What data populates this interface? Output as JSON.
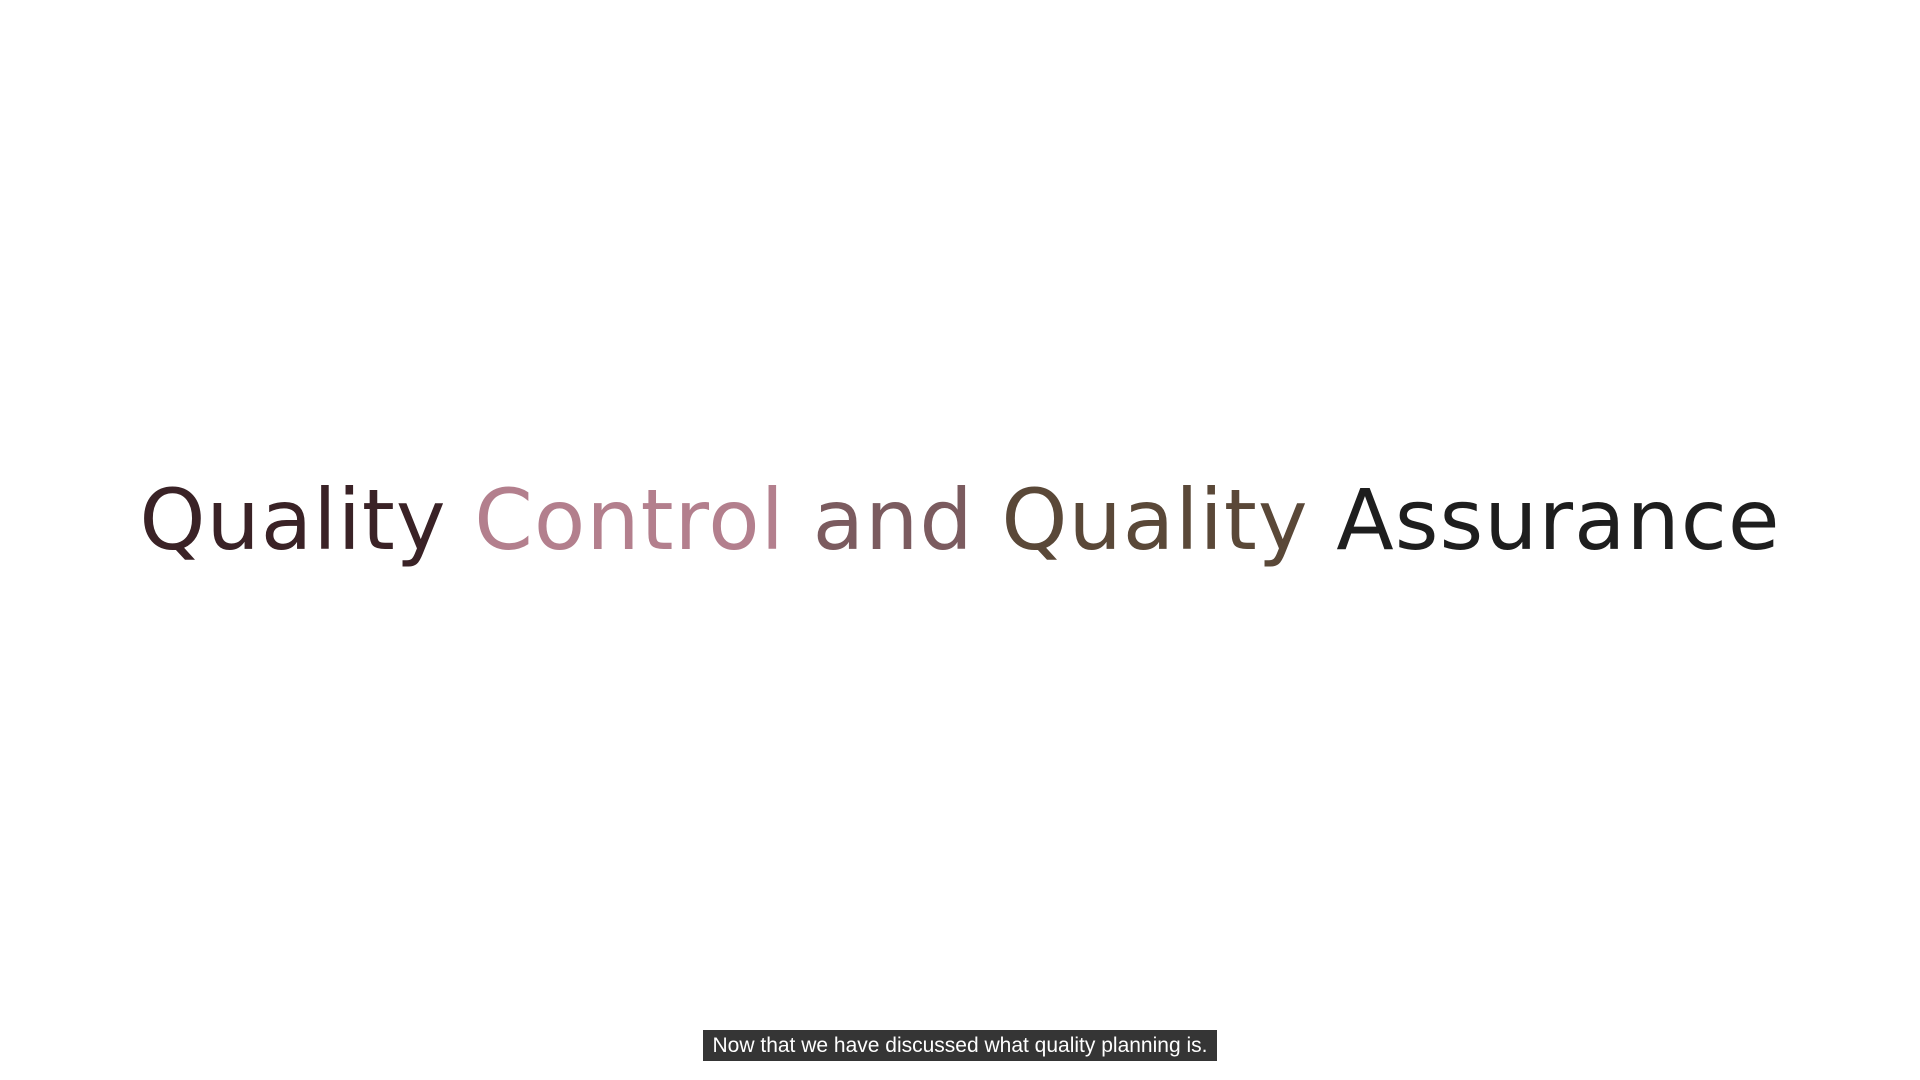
{
  "slide": {
    "title_parts": [
      "Quality",
      "Control",
      "and",
      "Quality",
      "Assurance"
    ],
    "colors": {
      "quality_1": "#3a2226",
      "control": "#b37f8d",
      "and": "#7b5b5f",
      "quality_2": "#5a4838",
      "assurance": "#1e1e1e"
    }
  },
  "caption": {
    "text": "Now that we have discussed what quality planning is."
  }
}
